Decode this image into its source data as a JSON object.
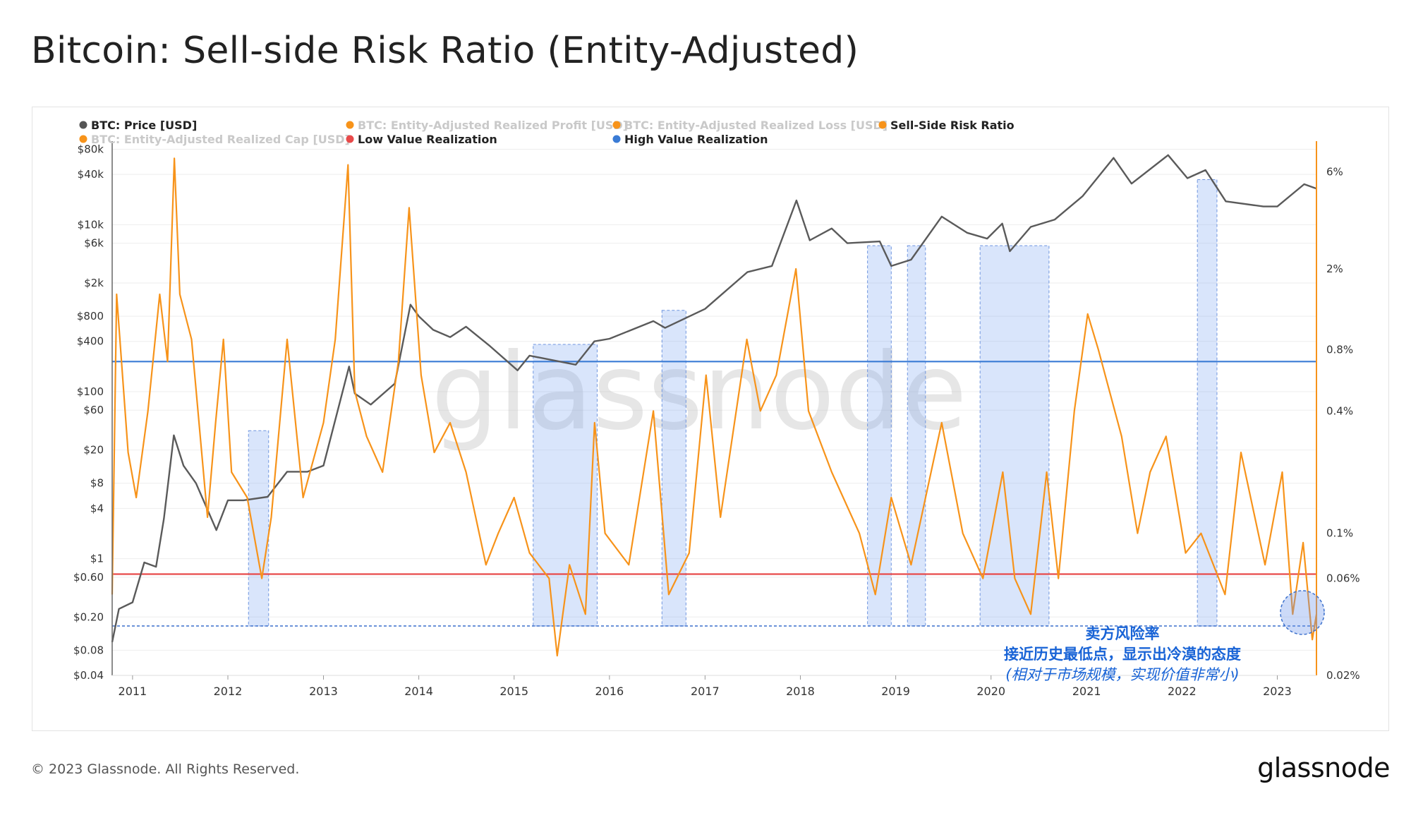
{
  "title": "Bitcoin: Sell-side Risk Ratio (Entity-Adjusted)",
  "footer": {
    "copyright": "© 2023 Glassnode. All Rights Reserved.",
    "brand": "glassnode"
  },
  "watermark": "glassnode",
  "legend": [
    {
      "label": "BTC: Price [USD]",
      "color": "#555555",
      "dim": false
    },
    {
      "label": "BTC: Entity-Adjusted Realized Profit [USD]",
      "color": "#f7931a",
      "dim": true
    },
    {
      "label": "BTC: Entity-Adjusted Realized Loss [USD]",
      "color": "#f7931a",
      "dim": true
    },
    {
      "label": "Sell-Side Risk Ratio",
      "color": "#f7931a",
      "dim": false
    },
    {
      "label": "BTC: Entity-Adjusted Realized Cap [USD]",
      "color": "#f7931a",
      "dim": true
    },
    {
      "label": "Low Value Realization",
      "color": "#e84a4a",
      "dim": false
    },
    {
      "label": "High Value Realization",
      "color": "#3a7bd5",
      "dim": false
    }
  ],
  "annotation": {
    "line1": "卖方风险率",
    "line2": "接近历史最低点，显示出冷漠的态度",
    "line3": "(相对于市场规模，实现价值非常小)"
  },
  "chart_data": {
    "type": "line",
    "x_range": [
      "2010-10-15",
      "2023-05-31"
    ],
    "x_ticks": [
      "2011",
      "2012",
      "2013",
      "2014",
      "2015",
      "2016",
      "2017",
      "2018",
      "2019",
      "2020",
      "2021",
      "2022",
      "2023"
    ],
    "y_left": {
      "scale": "log",
      "unit": "USD",
      "range": [
        0.04,
        100000
      ],
      "ticks": [
        {
          "value": 80000,
          "label": "$80k"
        },
        {
          "value": 40000,
          "label": "$40k"
        },
        {
          "value": 10000,
          "label": "$10k"
        },
        {
          "value": 6000,
          "label": "$6k"
        },
        {
          "value": 2000,
          "label": "$2k"
        },
        {
          "value": 800,
          "label": "$800"
        },
        {
          "value": 400,
          "label": "$400"
        },
        {
          "value": 100,
          "label": "$100"
        },
        {
          "value": 60,
          "label": "$60"
        },
        {
          "value": 20,
          "label": "$20"
        },
        {
          "value": 8,
          "label": "$8"
        },
        {
          "value": 4,
          "label": "$4"
        },
        {
          "value": 1,
          "label": "$1"
        },
        {
          "value": 0.6,
          "label": "$0.60"
        },
        {
          "value": 0.2,
          "label": "$0.20"
        },
        {
          "value": 0.08,
          "label": "$0.08"
        },
        {
          "value": 0.04,
          "label": "$0.04"
        }
      ]
    },
    "y_right": {
      "scale": "log",
      "unit": "%",
      "range": [
        0.02,
        8.5
      ],
      "ticks": [
        {
          "value": 6,
          "label": "6%"
        },
        {
          "value": 2,
          "label": "2%"
        },
        {
          "value": 0.8,
          "label": "0.8%"
        },
        {
          "value": 0.4,
          "label": "0.4%"
        },
        {
          "value": 0.1,
          "label": "0.1%"
        },
        {
          "value": 0.06,
          "label": "0.06%"
        },
        {
          "value": 0.02,
          "label": "0.02%"
        }
      ]
    },
    "thresholds": [
      {
        "name": "High Value Realization",
        "value_pct": 0.7,
        "color": "#3a7bd5"
      },
      {
        "name": "Low Value Realization",
        "value_pct": 0.063,
        "color": "#e84a4a"
      },
      {
        "name": "historical low level",
        "value_pct": 0.035,
        "color": "#3a6fcc",
        "style": "dashed"
      }
    ],
    "highlight_bands": [
      {
        "start": "2012-03-20",
        "end": "2012-06-05",
        "top_pct": 0.32
      },
      {
        "start": "2015-03-15",
        "end": "2015-11-15",
        "top_pct": 0.85
      },
      {
        "start": "2016-07-20",
        "end": "2016-10-20",
        "top_pct": 1.25
      },
      {
        "start": "2018-09-15",
        "end": "2018-12-15",
        "top_pct": 2.6
      },
      {
        "start": "2019-02-15",
        "end": "2019-04-25",
        "top_pct": 2.6
      },
      {
        "start": "2019-11-20",
        "end": "2020-08-10",
        "top_pct": 2.6
      },
      {
        "start": "2022-03-01",
        "end": "2022-05-15",
        "top_pct": 5.5
      }
    ],
    "series": [
      {
        "name": "BTC: Price [USD]",
        "axis": "left",
        "color": "#5a5a5a",
        "points": [
          [
            "2010-10-15",
            0.1
          ],
          [
            "2010-11-10",
            0.25
          ],
          [
            "2011-01-01",
            0.3
          ],
          [
            "2011-02-15",
            0.9
          ],
          [
            "2011-04-01",
            0.8
          ],
          [
            "2011-05-01",
            3
          ],
          [
            "2011-06-08",
            30
          ],
          [
            "2011-07-15",
            13
          ],
          [
            "2011-09-01",
            8
          ],
          [
            "2011-11-18",
            2.2
          ],
          [
            "2012-01-01",
            5
          ],
          [
            "2012-03-01",
            5
          ],
          [
            "2012-06-01",
            5.5
          ],
          [
            "2012-08-15",
            11
          ],
          [
            "2012-11-01",
            11
          ],
          [
            "2013-01-01",
            13
          ],
          [
            "2013-04-09",
            200
          ],
          [
            "2013-05-01",
            95
          ],
          [
            "2013-07-01",
            70
          ],
          [
            "2013-10-01",
            125
          ],
          [
            "2013-11-30",
            1100
          ],
          [
            "2014-01-01",
            800
          ],
          [
            "2014-02-25",
            550
          ],
          [
            "2014-05-01",
            450
          ],
          [
            "2014-07-01",
            600
          ],
          [
            "2014-10-01",
            350
          ],
          [
            "2015-01-14",
            180
          ],
          [
            "2015-03-01",
            270
          ],
          [
            "2015-08-25",
            210
          ],
          [
            "2015-11-04",
            400
          ],
          [
            "2016-01-01",
            430
          ],
          [
            "2016-06-17",
            700
          ],
          [
            "2016-08-01",
            580
          ],
          [
            "2017-01-01",
            980
          ],
          [
            "2017-06-12",
            2700
          ],
          [
            "2017-09-14",
            3200
          ],
          [
            "2017-12-17",
            19500
          ],
          [
            "2018-02-06",
            6500
          ],
          [
            "2018-05-01",
            9000
          ],
          [
            "2018-06-30",
            6000
          ],
          [
            "2018-11-01",
            6300
          ],
          [
            "2018-12-15",
            3200
          ],
          [
            "2019-03-01",
            3800
          ],
          [
            "2019-06-26",
            12500
          ],
          [
            "2019-10-01",
            8000
          ],
          [
            "2019-12-17",
            6800
          ],
          [
            "2020-02-13",
            10300
          ],
          [
            "2020-03-13",
            4800
          ],
          [
            "2020-06-01",
            9400
          ],
          [
            "2020-09-01",
            11500
          ],
          [
            "2020-12-17",
            22000
          ],
          [
            "2021-04-14",
            63000
          ],
          [
            "2021-06-22",
            31000
          ],
          [
            "2021-11-09",
            68000
          ],
          [
            "2022-01-22",
            36000
          ],
          [
            "2022-04-01",
            45000
          ],
          [
            "2022-06-18",
            19000
          ],
          [
            "2022-11-09",
            16500
          ],
          [
            "2023-01-01",
            16500
          ],
          [
            "2023-04-14",
            30500
          ],
          [
            "2023-05-31",
            27000
          ]
        ]
      },
      {
        "name": "Sell-Side Risk Ratio",
        "axis": "right",
        "unit": "%",
        "color": "#f7931a",
        "points": [
          [
            "2010-10-15",
            0.05
          ],
          [
            "2010-11-01",
            1.5
          ],
          [
            "2010-12-15",
            0.25
          ],
          [
            "2011-01-15",
            0.15
          ],
          [
            "2011-03-01",
            0.4
          ],
          [
            "2011-04-15",
            1.5
          ],
          [
            "2011-05-15",
            0.7
          ],
          [
            "2011-06-10",
            7.0
          ],
          [
            "2011-07-01",
            1.5
          ],
          [
            "2011-08-15",
            0.9
          ],
          [
            "2011-10-15",
            0.12
          ],
          [
            "2011-11-15",
            0.35
          ],
          [
            "2011-12-15",
            0.9
          ],
          [
            "2012-01-15",
            0.2
          ],
          [
            "2012-03-15",
            0.15
          ],
          [
            "2012-05-10",
            0.06
          ],
          [
            "2012-06-15",
            0.12
          ],
          [
            "2012-08-15",
            0.9
          ],
          [
            "2012-10-15",
            0.15
          ],
          [
            "2013-01-01",
            0.35
          ],
          [
            "2013-02-15",
            0.9
          ],
          [
            "2013-04-05",
            6.5
          ],
          [
            "2013-05-01",
            0.5
          ],
          [
            "2013-06-15",
            0.3
          ],
          [
            "2013-08-15",
            0.2
          ],
          [
            "2013-10-15",
            0.7
          ],
          [
            "2013-11-25",
            4.0
          ],
          [
            "2014-01-10",
            0.6
          ],
          [
            "2014-03-01",
            0.25
          ],
          [
            "2014-05-01",
            0.35
          ],
          [
            "2014-07-01",
            0.2
          ],
          [
            "2014-09-15",
            0.07
          ],
          [
            "2014-11-01",
            0.1
          ],
          [
            "2015-01-01",
            0.15
          ],
          [
            "2015-03-01",
            0.08
          ],
          [
            "2015-05-15",
            0.06
          ],
          [
            "2015-06-15",
            0.025
          ],
          [
            "2015-08-01",
            0.07
          ],
          [
            "2015-10-01",
            0.04
          ],
          [
            "2015-11-05",
            0.35
          ],
          [
            "2015-12-15",
            0.1
          ],
          [
            "2016-03-15",
            0.07
          ],
          [
            "2016-06-17",
            0.4
          ],
          [
            "2016-08-15",
            0.05
          ],
          [
            "2016-11-01",
            0.08
          ],
          [
            "2017-01-05",
            0.6
          ],
          [
            "2017-03-01",
            0.12
          ],
          [
            "2017-06-10",
            0.9
          ],
          [
            "2017-08-01",
            0.4
          ],
          [
            "2017-10-01",
            0.6
          ],
          [
            "2017-12-15",
            2.0
          ],
          [
            "2018-02-01",
            0.4
          ],
          [
            "2018-05-01",
            0.2
          ],
          [
            "2018-08-15",
            0.1
          ],
          [
            "2018-10-15",
            0.05
          ],
          [
            "2018-12-15",
            0.15
          ],
          [
            "2019-03-01",
            0.07
          ],
          [
            "2019-06-26",
            0.35
          ],
          [
            "2019-09-15",
            0.1
          ],
          [
            "2019-12-01",
            0.06
          ],
          [
            "2020-02-15",
            0.2
          ],
          [
            "2020-04-01",
            0.06
          ],
          [
            "2020-06-01",
            0.04
          ],
          [
            "2020-08-01",
            0.2
          ],
          [
            "2020-09-15",
            0.06
          ],
          [
            "2020-11-15",
            0.4
          ],
          [
            "2021-01-05",
            1.2
          ],
          [
            "2021-02-15",
            0.8
          ],
          [
            "2021-05-15",
            0.3
          ],
          [
            "2021-07-15",
            0.1
          ],
          [
            "2021-09-01",
            0.2
          ],
          [
            "2021-11-01",
            0.3
          ],
          [
            "2022-01-15",
            0.08
          ],
          [
            "2022-03-15",
            0.1
          ],
          [
            "2022-06-15",
            0.05
          ],
          [
            "2022-08-15",
            0.25
          ],
          [
            "2022-11-15",
            0.07
          ],
          [
            "2023-01-20",
            0.2
          ],
          [
            "2023-03-01",
            0.04
          ],
          [
            "2023-04-10",
            0.09
          ],
          [
            "2023-05-15",
            0.03
          ],
          [
            "2023-05-31",
            0.04
          ]
        ]
      }
    ]
  }
}
